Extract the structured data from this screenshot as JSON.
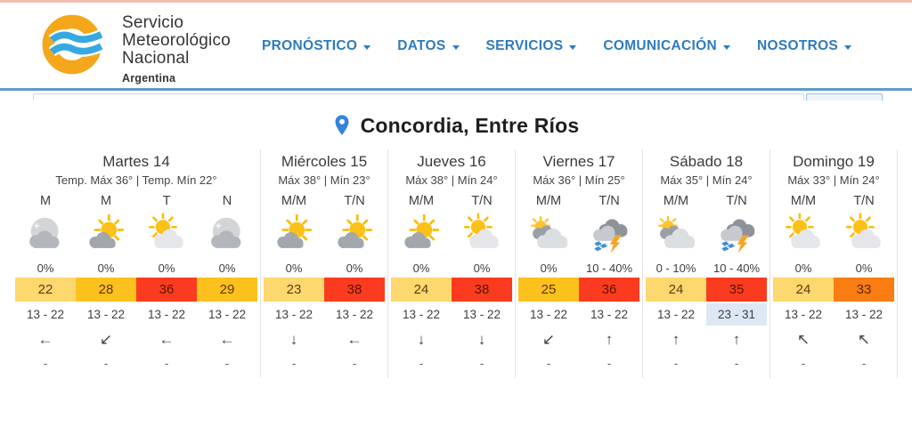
{
  "colors": {
    "temp_light": "#fdd86e",
    "temp_amber": "#fcc11c",
    "temp_red": "#fa3b1f",
    "temp_orange": "#f97d13",
    "range_highlight": "#dde8f4",
    "nav_blue": "#2e7bbd",
    "pin_blue": "#3285d8",
    "logo_orange": "#f4a71b",
    "logo_wave_blue": "#36a9e1",
    "top_accent": "#f1bdb1"
  },
  "header": {
    "logo_lines": [
      "Servicio",
      "Meteorológico",
      "Nacional",
      "Argentina"
    ],
    "nav": [
      {
        "label": "PRONÓSTICO"
      },
      {
        "label": "DATOS"
      },
      {
        "label": "SERVICIOS"
      },
      {
        "label": "COMUNICACIÓN"
      },
      {
        "label": "NOSOTROS"
      }
    ]
  },
  "location": {
    "title": "Concordia, Entre Ríos"
  },
  "forecast": {
    "days": [
      {
        "name": "Martes 14",
        "temps_label": "Temp. Máx 36° | Temp. Mín 22°",
        "periods": [
          {
            "label": "M",
            "icon": "cloudy",
            "prob": "0%",
            "temp": "22",
            "temp_color": "temp_light",
            "range": "13 - 22",
            "wind": "←",
            "extra": "-"
          },
          {
            "label": "M",
            "icon": "sun-cloud",
            "prob": "0%",
            "temp": "28",
            "temp_color": "temp_amber",
            "range": "13 - 22",
            "wind": "↙",
            "extra": "-"
          },
          {
            "label": "T",
            "icon": "sun-light-cloud",
            "prob": "0%",
            "temp": "36",
            "temp_color": "temp_red",
            "range": "13 - 22",
            "wind": "←",
            "extra": "-"
          },
          {
            "label": "N",
            "icon": "cloudy",
            "prob": "0%",
            "temp": "29",
            "temp_color": "temp_amber",
            "range": "13 - 22",
            "wind": "←",
            "extra": "-"
          }
        ]
      },
      {
        "name": "Miércoles 15",
        "temps_label": "Máx 38° | Mín 23°",
        "periods": [
          {
            "label": "M/M",
            "icon": "sun-cloud",
            "prob": "0%",
            "temp": "23",
            "temp_color": "temp_light",
            "range": "13 - 22",
            "wind": "↓",
            "extra": "-"
          },
          {
            "label": "T/N",
            "icon": "sun-cloud",
            "prob": "0%",
            "temp": "38",
            "temp_color": "temp_red",
            "range": "13 - 22",
            "wind": "←",
            "extra": "-"
          }
        ]
      },
      {
        "name": "Jueves 16",
        "temps_label": "Máx 38° | Mín 24°",
        "periods": [
          {
            "label": "M/M",
            "icon": "sun-cloud",
            "prob": "0%",
            "temp": "24",
            "temp_color": "temp_light",
            "range": "13 - 22",
            "wind": "↓",
            "extra": "-"
          },
          {
            "label": "T/N",
            "icon": "sun-light-cloud",
            "prob": "0%",
            "temp": "38",
            "temp_color": "temp_red",
            "range": "13 - 22",
            "wind": "↓",
            "extra": "-"
          }
        ]
      },
      {
        "name": "Viernes 17",
        "temps_label": "Máx 36° | Mín 25°",
        "periods": [
          {
            "label": "M/M",
            "icon": "cloud-sun",
            "prob": "0%",
            "temp": "25",
            "temp_color": "temp_amber",
            "range": "13 - 22",
            "wind": "↙",
            "extra": "-"
          },
          {
            "label": "T/N",
            "icon": "storm",
            "prob": "10 - 40%",
            "temp": "36",
            "temp_color": "temp_red",
            "range": "13 - 22",
            "wind": "↑",
            "extra": "-"
          }
        ]
      },
      {
        "name": "Sábado 18",
        "temps_label": "Máx 35° | Mín 24°",
        "periods": [
          {
            "label": "M/M",
            "icon": "cloud-sun",
            "prob": "0 - 10%",
            "temp": "24",
            "temp_color": "temp_light",
            "range": "13 - 22",
            "wind": "↑",
            "extra": "-"
          },
          {
            "label": "T/N",
            "icon": "storm",
            "prob": "10 - 40%",
            "temp": "35",
            "temp_color": "temp_red",
            "range": "23 - 31",
            "range_color": "range_highlight",
            "wind": "↑",
            "extra": "-"
          }
        ]
      },
      {
        "name": "Domingo 19",
        "temps_label": "Máx 33° | Mín 24°",
        "periods": [
          {
            "label": "M/M",
            "icon": "sun-light-cloud",
            "prob": "0%",
            "temp": "24",
            "temp_color": "temp_light",
            "range": "13 - 22",
            "wind": "↖",
            "extra": "-"
          },
          {
            "label": "T/N",
            "icon": "sun-light-cloud",
            "prob": "0%",
            "temp": "33",
            "temp_color": "temp_orange",
            "range": "13 - 22",
            "wind": "↖",
            "extra": "-"
          }
        ]
      }
    ]
  }
}
